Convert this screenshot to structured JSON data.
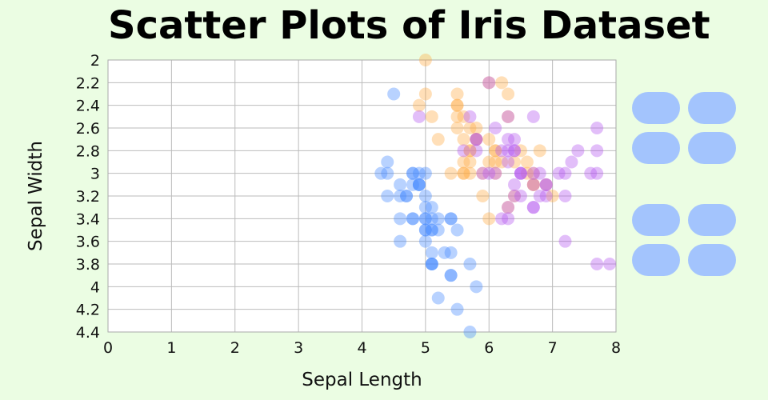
{
  "chart_data": {
    "type": "scatter",
    "title": "Scatter Plots of Iris Dataset",
    "xlabel": "Sepal Length",
    "ylabel": "Sepal Width",
    "xlim": [
      0,
      8
    ],
    "ylim": [
      2,
      4.4
    ],
    "y_inverted": true,
    "x_ticks": [
      "0",
      "1",
      "2",
      "3",
      "4",
      "5",
      "6",
      "7",
      "8"
    ],
    "y_ticks": [
      "2",
      "2.2",
      "2.4",
      "2.6",
      "2.8",
      "3",
      "3.2",
      "3.4",
      "3.6",
      "3.8",
      "4",
      "4.2",
      "4.4"
    ],
    "grid": true,
    "legend": {
      "placement": "right",
      "swatch_color": "#a3c4fd",
      "entries": 8
    },
    "series": [
      {
        "color": "#4488ff",
        "points": [
          [
            5.1,
            3.5
          ],
          [
            4.9,
            3.0
          ],
          [
            4.7,
            3.2
          ],
          [
            4.6,
            3.1
          ],
          [
            5.0,
            3.6
          ],
          [
            5.4,
            3.9
          ],
          [
            4.6,
            3.4
          ],
          [
            5.0,
            3.4
          ],
          [
            4.4,
            2.9
          ],
          [
            4.9,
            3.1
          ],
          [
            5.4,
            3.7
          ],
          [
            4.8,
            3.4
          ],
          [
            4.8,
            3.0
          ],
          [
            4.3,
            3.0
          ],
          [
            5.8,
            4.0
          ],
          [
            5.7,
            4.4
          ],
          [
            5.4,
            3.9
          ],
          [
            5.1,
            3.5
          ],
          [
            5.7,
            3.8
          ],
          [
            5.1,
            3.8
          ],
          [
            5.4,
            3.4
          ],
          [
            5.1,
            3.7
          ],
          [
            4.6,
            3.6
          ],
          [
            5.1,
            3.3
          ],
          [
            4.8,
            3.4
          ],
          [
            5.0,
            3.0
          ],
          [
            5.0,
            3.4
          ],
          [
            5.2,
            3.5
          ],
          [
            5.2,
            3.4
          ],
          [
            4.7,
            3.2
          ],
          [
            4.8,
            3.1
          ],
          [
            5.4,
            3.4
          ],
          [
            5.2,
            4.1
          ],
          [
            5.5,
            4.2
          ],
          [
            4.9,
            3.1
          ],
          [
            5.0,
            3.2
          ],
          [
            5.5,
            3.5
          ],
          [
            4.9,
            3.1
          ],
          [
            4.4,
            3.0
          ],
          [
            5.1,
            3.4
          ],
          [
            5.0,
            3.5
          ],
          [
            4.5,
            2.3
          ],
          [
            4.4,
            3.2
          ],
          [
            5.0,
            3.5
          ],
          [
            5.1,
            3.8
          ],
          [
            4.8,
            3.0
          ],
          [
            5.1,
            3.8
          ],
          [
            4.6,
            3.2
          ],
          [
            5.3,
            3.7
          ],
          [
            5.0,
            3.3
          ]
        ]
      },
      {
        "color": "#ffaa44",
        "points": [
          [
            7.0,
            3.2
          ],
          [
            6.4,
            3.2
          ],
          [
            6.9,
            3.1
          ],
          [
            5.5,
            2.3
          ],
          [
            6.5,
            2.8
          ],
          [
            5.7,
            2.8
          ],
          [
            6.3,
            3.3
          ],
          [
            4.9,
            2.4
          ],
          [
            6.6,
            2.9
          ],
          [
            5.2,
            2.7
          ],
          [
            5.0,
            2.0
          ],
          [
            5.9,
            3.0
          ],
          [
            6.0,
            2.2
          ],
          [
            6.1,
            2.9
          ],
          [
            5.6,
            2.9
          ],
          [
            6.7,
            3.1
          ],
          [
            5.6,
            3.0
          ],
          [
            5.8,
            2.7
          ],
          [
            6.2,
            2.2
          ],
          [
            5.6,
            2.5
          ],
          [
            5.9,
            3.2
          ],
          [
            6.1,
            2.8
          ],
          [
            6.3,
            2.5
          ],
          [
            6.1,
            2.8
          ],
          [
            6.4,
            2.9
          ],
          [
            6.6,
            3.0
          ],
          [
            6.8,
            2.8
          ],
          [
            6.7,
            3.0
          ],
          [
            6.0,
            2.9
          ],
          [
            5.7,
            2.6
          ],
          [
            5.5,
            2.4
          ],
          [
            5.5,
            2.4
          ],
          [
            5.8,
            2.7
          ],
          [
            6.0,
            2.7
          ],
          [
            5.4,
            3.0
          ],
          [
            6.0,
            3.4
          ],
          [
            6.7,
            3.1
          ],
          [
            6.3,
            2.3
          ],
          [
            5.6,
            3.0
          ],
          [
            5.5,
            2.5
          ],
          [
            5.5,
            2.6
          ],
          [
            6.1,
            3.0
          ],
          [
            5.8,
            2.6
          ],
          [
            5.0,
            2.3
          ],
          [
            5.6,
            2.7
          ],
          [
            5.7,
            3.0
          ],
          [
            5.7,
            2.9
          ],
          [
            6.2,
            2.9
          ],
          [
            5.1,
            2.5
          ],
          [
            5.7,
            2.8
          ]
        ]
      },
      {
        "color": "#b455f0",
        "points": [
          [
            6.3,
            3.3
          ],
          [
            5.8,
            2.7
          ],
          [
            7.1,
            3.0
          ],
          [
            6.3,
            2.9
          ],
          [
            6.5,
            3.0
          ],
          [
            7.6,
            3.0
          ],
          [
            4.9,
            2.5
          ],
          [
            7.3,
            2.9
          ],
          [
            6.7,
            2.5
          ],
          [
            7.2,
            3.6
          ],
          [
            6.5,
            3.2
          ],
          [
            6.4,
            2.7
          ],
          [
            6.8,
            3.0
          ],
          [
            5.7,
            2.5
          ],
          [
            5.8,
            2.8
          ],
          [
            6.4,
            3.2
          ],
          [
            6.5,
            3.0
          ],
          [
            7.7,
            3.8
          ],
          [
            7.7,
            2.6
          ],
          [
            6.0,
            2.2
          ],
          [
            6.9,
            3.2
          ],
          [
            5.6,
            2.8
          ],
          [
            7.7,
            2.8
          ],
          [
            6.3,
            2.7
          ],
          [
            6.7,
            3.3
          ],
          [
            7.2,
            3.2
          ],
          [
            6.2,
            2.8
          ],
          [
            6.1,
            3.0
          ],
          [
            6.4,
            2.8
          ],
          [
            7.2,
            3.0
          ],
          [
            7.4,
            2.8
          ],
          [
            7.9,
            3.8
          ],
          [
            6.4,
            2.8
          ],
          [
            6.3,
            2.8
          ],
          [
            6.1,
            2.6
          ],
          [
            7.7,
            3.0
          ],
          [
            6.3,
            3.4
          ],
          [
            6.4,
            3.1
          ],
          [
            6.0,
            3.0
          ],
          [
            6.9,
            3.1
          ],
          [
            6.7,
            3.1
          ],
          [
            6.9,
            3.1
          ],
          [
            5.8,
            2.7
          ],
          [
            6.8,
            3.2
          ],
          [
            6.7,
            3.3
          ],
          [
            6.7,
            3.0
          ],
          [
            6.3,
            2.5
          ],
          [
            6.5,
            3.0
          ],
          [
            6.2,
            3.4
          ],
          [
            5.9,
            3.0
          ]
        ]
      }
    ]
  }
}
